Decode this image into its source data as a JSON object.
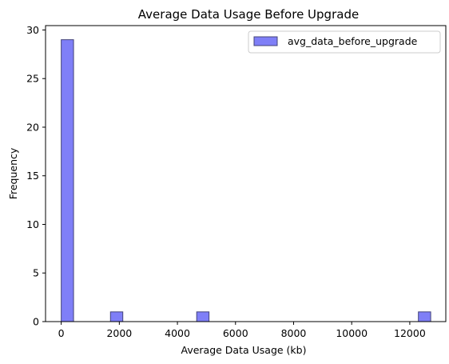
{
  "chart_data": {
    "type": "bar",
    "title": "Average Data Usage Before Upgrade",
    "xlabel": "Average Data Usage (kb)",
    "ylabel": "Frequency",
    "xlim": [
      -540,
      13240
    ],
    "ylim": [
      0,
      30.45
    ],
    "xticks": [
      0,
      2000,
      4000,
      6000,
      8000,
      10000,
      12000
    ],
    "yticks": [
      0,
      5,
      10,
      15,
      20,
      25,
      30
    ],
    "bins": [
      {
        "x0": 0,
        "x1": 424,
        "count": 29
      },
      {
        "x0": 1696,
        "x1": 2120,
        "count": 1
      },
      {
        "x0": 4664,
        "x1": 5088,
        "count": 1
      },
      {
        "x0": 12296,
        "x1": 12720,
        "count": 1
      }
    ],
    "series": [
      {
        "name": "avg_data_before_upgrade",
        "color": "#7f7ff7"
      }
    ],
    "legend": "top-right",
    "grid": false
  },
  "colors": {
    "bar_fill": "#7f7ff7",
    "bar_edge": "#44447a",
    "axis": "#000000"
  }
}
